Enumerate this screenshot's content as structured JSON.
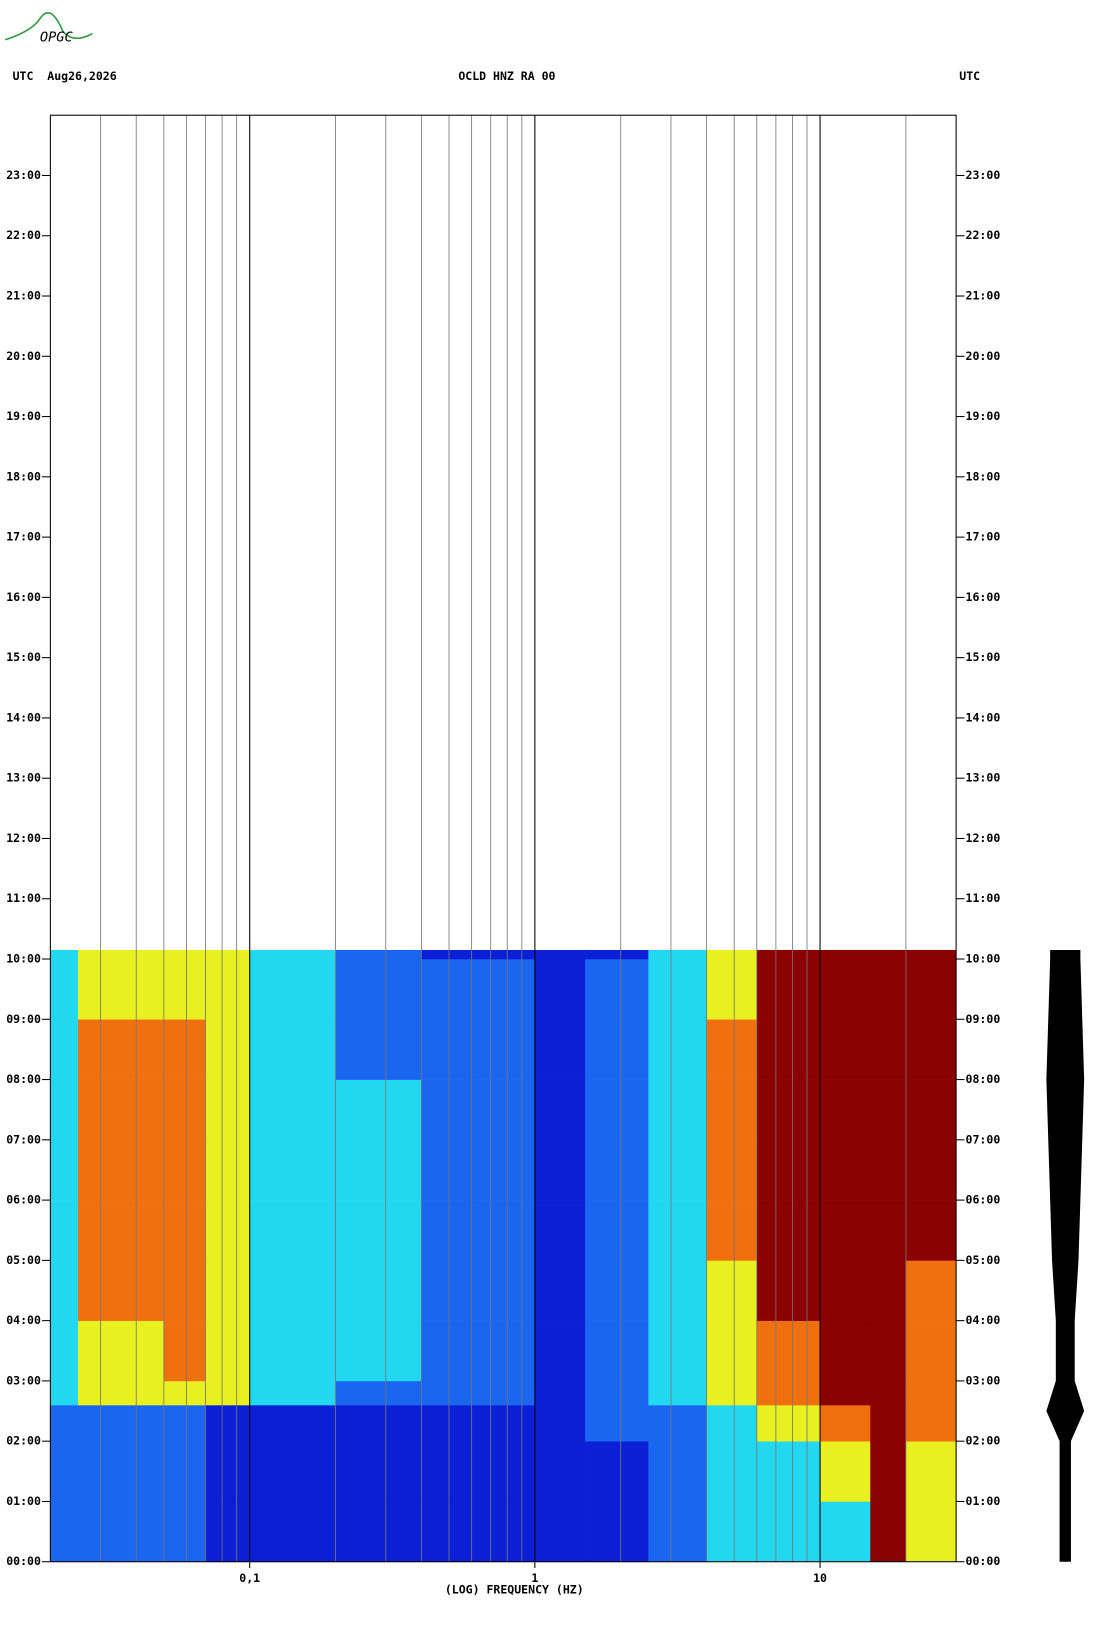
{
  "logo": "OPGC",
  "chart_data": {
    "type": "spectrogram",
    "header_left": "UTC  Aug26,2026",
    "title": "OCLD HNZ RA 00",
    "header_right": "UTC",
    "xlabel": "(LOG) FREQUENCY (HZ)",
    "xscale": "log",
    "xlim": [
      0.02,
      30
    ],
    "xticks": [
      {
        "value": 0.1,
        "label": "0,1"
      },
      1,
      10
    ],
    "x_minor_ticks": [
      0.03,
      0.04,
      0.05,
      0.06,
      0.07,
      0.08,
      0.09,
      0.2,
      0.3,
      0.4,
      0.5,
      0.6,
      0.7,
      0.8,
      0.9,
      2,
      3,
      4,
      5,
      6,
      7,
      8,
      9,
      20
    ],
    "ylim": [
      0,
      24
    ],
    "yticks": [
      {
        "value": 0,
        "label": "00:00"
      },
      {
        "value": 1,
        "label": "01:00"
      },
      {
        "value": 2,
        "label": "02:00"
      },
      {
        "value": 3,
        "label": "03:00"
      },
      {
        "value": 4,
        "label": "04:00"
      },
      {
        "value": 5,
        "label": "05:00"
      },
      {
        "value": 6,
        "label": "06:00"
      },
      {
        "value": 7,
        "label": "07:00"
      },
      {
        "value": 8,
        "label": "08:00"
      },
      {
        "value": 9,
        "label": "09:00"
      },
      {
        "value": 10,
        "label": "10:00"
      },
      {
        "value": 11,
        "label": "11:00"
      },
      {
        "value": 12,
        "label": "12:00"
      },
      {
        "value": 13,
        "label": "13:00"
      },
      {
        "value": 14,
        "label": "14:00"
      },
      {
        "value": 15,
        "label": "15:00"
      },
      {
        "value": 16,
        "label": "16:00"
      },
      {
        "value": 17,
        "label": "17:00"
      },
      {
        "value": 18,
        "label": "18:00"
      },
      {
        "value": 19,
        "label": "19:00"
      },
      {
        "value": 20,
        "label": "20:00"
      },
      {
        "value": 21,
        "label": "21:00"
      },
      {
        "value": 22,
        "label": "22:00"
      },
      {
        "value": 23,
        "label": "23:00"
      }
    ],
    "colormap": [
      "#0a1fd6",
      "#1a66f0",
      "#22d8f0",
      "#e8f020",
      "#f07010",
      "#8b0000"
    ],
    "freq_edges": [
      0.02,
      0.025,
      0.05,
      0.07,
      0.1,
      0.2,
      0.4,
      1,
      1.5,
      2.5,
      4,
      6,
      10,
      15,
      20,
      30
    ],
    "time_edges": [
      0,
      1,
      2,
      2.6,
      3,
      4,
      5,
      6,
      7,
      8,
      9,
      10,
      10.15
    ],
    "z": [
      [
        1,
        1,
        1,
        0,
        0,
        0,
        0,
        0,
        0,
        1,
        2,
        2,
        2,
        5,
        3
      ],
      [
        1,
        1,
        1,
        0,
        0,
        0,
        0,
        0,
        0,
        1,
        2,
        2,
        3,
        5,
        3
      ],
      [
        1,
        1,
        1,
        0,
        0,
        0,
        0,
        0,
        1,
        1,
        2,
        3,
        4,
        5,
        4
      ],
      [
        2,
        3,
        3,
        3,
        2,
        1,
        1,
        0,
        1,
        2,
        3,
        4,
        5,
        5,
        4
      ],
      [
        2,
        3,
        4,
        3,
        2,
        2,
        1,
        0,
        1,
        2,
        3,
        4,
        5,
        5,
        4
      ],
      [
        2,
        4,
        4,
        3,
        2,
        2,
        1,
        0,
        1,
        2,
        3,
        5,
        5,
        5,
        4
      ],
      [
        2,
        4,
        4,
        3,
        2,
        2,
        1,
        0,
        1,
        2,
        4,
        5,
        5,
        5,
        5
      ],
      [
        2,
        4,
        4,
        3,
        2,
        2,
        1,
        0,
        1,
        2,
        4,
        5,
        5,
        5,
        5
      ],
      [
        2,
        4,
        4,
        3,
        2,
        2,
        1,
        0,
        1,
        2,
        4,
        5,
        5,
        5,
        5
      ],
      [
        2,
        4,
        4,
        3,
        2,
        1,
        1,
        0,
        1,
        2,
        4,
        5,
        5,
        5,
        5
      ],
      [
        2,
        3,
        3,
        3,
        2,
        1,
        1,
        0,
        1,
        2,
        3,
        5,
        5,
        5,
        5
      ],
      [
        2,
        3,
        3,
        3,
        2,
        1,
        0,
        0,
        0,
        2,
        3,
        5,
        5,
        5,
        5
      ]
    ],
    "trace": {
      "times": [
        0,
        1,
        2,
        2.5,
        3,
        4,
        5,
        6,
        7,
        8,
        9,
        10,
        10.15
      ],
      "amplitude": [
        0.3,
        0.3,
        0.3,
        1.0,
        0.5,
        0.5,
        0.7,
        0.8,
        0.9,
        1.0,
        0.9,
        0.8,
        0.8
      ]
    }
  }
}
